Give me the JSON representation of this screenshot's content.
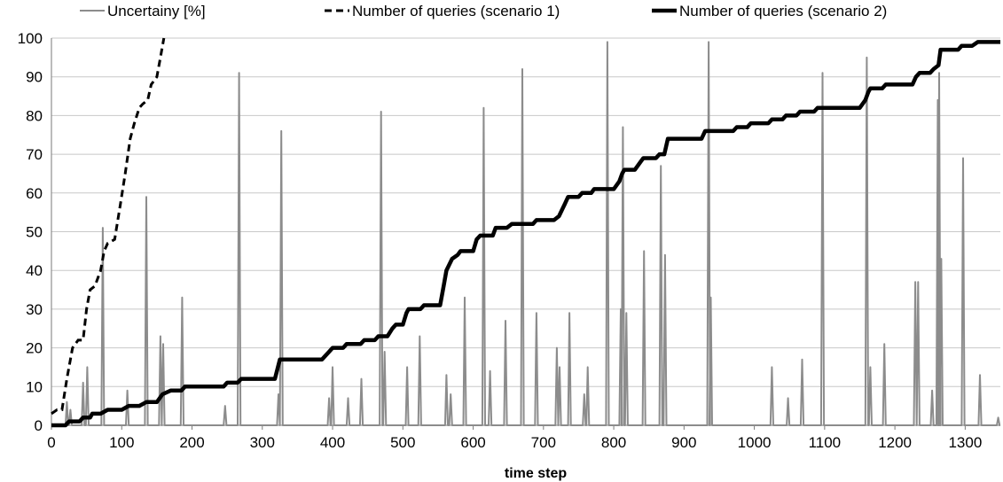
{
  "chart_data": {
    "type": "line",
    "title": "",
    "xlabel": "time step",
    "ylabel": "",
    "xlim": [
      0,
      1350
    ],
    "ylim": [
      0,
      100
    ],
    "x_ticks": [
      "0",
      "100",
      "200",
      "300",
      "400",
      "500",
      "600",
      "700",
      "800",
      "900",
      "1000",
      "1100",
      "1200",
      "1300"
    ],
    "y_ticks": [
      "0",
      "10",
      "20",
      "30",
      "40",
      "50",
      "60",
      "70",
      "80",
      "90",
      "100"
    ],
    "grid": "horizontal",
    "legend_position": "top",
    "series": [
      {
        "name": "Uncertainy [%]",
        "style": "solid-thin",
        "color": "#8c8c8c",
        "spikes": [
          [
            22,
            6
          ],
          [
            27,
            4
          ],
          [
            45,
            11
          ],
          [
            51,
            15
          ],
          [
            73,
            51
          ],
          [
            108,
            9
          ],
          [
            135,
            59
          ],
          [
            155,
            23
          ],
          [
            159,
            21
          ],
          [
            186,
            33
          ],
          [
            247,
            5
          ],
          [
            267,
            91
          ],
          [
            323,
            8
          ],
          [
            327,
            76
          ],
          [
            395,
            7
          ],
          [
            400,
            15
          ],
          [
            422,
            7
          ],
          [
            441,
            12
          ],
          [
            469,
            81
          ],
          [
            474,
            19
          ],
          [
            506,
            15
          ],
          [
            524,
            23
          ],
          [
            562,
            13
          ],
          [
            568,
            8
          ],
          [
            588,
            33
          ],
          [
            615,
            82
          ],
          [
            624,
            14
          ],
          [
            646,
            27
          ],
          [
            670,
            92
          ],
          [
            690,
            29
          ],
          [
            719,
            20
          ],
          [
            723,
            15
          ],
          [
            737,
            29
          ],
          [
            758,
            8
          ],
          [
            763,
            15
          ],
          [
            791,
            99
          ],
          [
            810,
            30
          ],
          [
            813,
            77
          ],
          [
            818,
            29
          ],
          [
            843,
            45
          ],
          [
            867,
            67
          ],
          [
            873,
            44
          ],
          [
            935,
            99
          ],
          [
            938,
            33
          ],
          [
            1025,
            15
          ],
          [
            1048,
            7
          ],
          [
            1068,
            17
          ],
          [
            1097,
            91
          ],
          [
            1160,
            95
          ],
          [
            1165,
            15
          ],
          [
            1185,
            21
          ],
          [
            1229,
            37
          ],
          [
            1233,
            37
          ],
          [
            1253,
            9
          ],
          [
            1261,
            84
          ],
          [
            1263,
            91
          ],
          [
            1266,
            43
          ],
          [
            1297,
            69
          ],
          [
            1321,
            13
          ],
          [
            1347,
            2
          ]
        ]
      },
      {
        "name": "Number of queries (scenario 1)",
        "style": "dashed",
        "color": "#000000",
        "points": [
          [
            0,
            3
          ],
          [
            8,
            4
          ],
          [
            15,
            4
          ],
          [
            22,
            12
          ],
          [
            30,
            20
          ],
          [
            38,
            22
          ],
          [
            45,
            22
          ],
          [
            50,
            30
          ],
          [
            55,
            35
          ],
          [
            62,
            36
          ],
          [
            70,
            40
          ],
          [
            75,
            45
          ],
          [
            80,
            47
          ],
          [
            90,
            48
          ],
          [
            98,
            57
          ],
          [
            105,
            65
          ],
          [
            112,
            74
          ],
          [
            118,
            78
          ],
          [
            125,
            82
          ],
          [
            130,
            83
          ],
          [
            137,
            84
          ],
          [
            142,
            88
          ],
          [
            150,
            90
          ],
          [
            155,
            95
          ],
          [
            160,
            100
          ]
        ]
      },
      {
        "name": "Number of queries (scenario 2)",
        "style": "solid-thick",
        "color": "#000000",
        "points": [
          [
            0,
            0
          ],
          [
            20,
            0
          ],
          [
            25,
            1
          ],
          [
            40,
            1
          ],
          [
            45,
            2
          ],
          [
            55,
            2
          ],
          [
            58,
            3
          ],
          [
            70,
            3
          ],
          [
            80,
            4
          ],
          [
            100,
            4
          ],
          [
            110,
            5
          ],
          [
            125,
            5
          ],
          [
            135,
            6
          ],
          [
            150,
            6
          ],
          [
            158,
            8
          ],
          [
            170,
            9
          ],
          [
            185,
            9
          ],
          [
            190,
            10
          ],
          [
            245,
            10
          ],
          [
            250,
            11
          ],
          [
            265,
            11
          ],
          [
            270,
            12
          ],
          [
            318,
            12
          ],
          [
            325,
            17
          ],
          [
            385,
            17
          ],
          [
            390,
            18
          ],
          [
            395,
            19
          ],
          [
            400,
            20
          ],
          [
            415,
            20
          ],
          [
            420,
            21
          ],
          [
            440,
            21
          ],
          [
            445,
            22
          ],
          [
            460,
            22
          ],
          [
            465,
            23
          ],
          [
            478,
            23
          ],
          [
            485,
            25
          ],
          [
            490,
            26
          ],
          [
            500,
            26
          ],
          [
            505,
            29
          ],
          [
            508,
            30
          ],
          [
            525,
            30
          ],
          [
            530,
            31
          ],
          [
            553,
            31
          ],
          [
            558,
            36
          ],
          [
            562,
            40
          ],
          [
            570,
            43
          ],
          [
            578,
            44
          ],
          [
            582,
            45
          ],
          [
            600,
            45
          ],
          [
            605,
            48
          ],
          [
            610,
            49
          ],
          [
            628,
            49
          ],
          [
            632,
            51
          ],
          [
            648,
            51
          ],
          [
            655,
            52
          ],
          [
            685,
            52
          ],
          [
            690,
            53
          ],
          [
            715,
            53
          ],
          [
            722,
            54
          ],
          [
            730,
            57
          ],
          [
            735,
            59
          ],
          [
            750,
            59
          ],
          [
            755,
            60
          ],
          [
            768,
            60
          ],
          [
            772,
            61
          ],
          [
            800,
            61
          ],
          [
            808,
            63
          ],
          [
            812,
            65
          ],
          [
            815,
            66
          ],
          [
            830,
            66
          ],
          [
            838,
            68
          ],
          [
            842,
            69
          ],
          [
            860,
            69
          ],
          [
            865,
            70
          ],
          [
            872,
            70
          ],
          [
            877,
            74
          ],
          [
            925,
            74
          ],
          [
            930,
            76
          ],
          [
            970,
            76
          ],
          [
            975,
            77
          ],
          [
            990,
            77
          ],
          [
            995,
            78
          ],
          [
            1020,
            78
          ],
          [
            1025,
            79
          ],
          [
            1040,
            79
          ],
          [
            1045,
            80
          ],
          [
            1060,
            80
          ],
          [
            1065,
            81
          ],
          [
            1085,
            81
          ],
          [
            1090,
            82
          ],
          [
            1150,
            82
          ],
          [
            1158,
            84
          ],
          [
            1162,
            86
          ],
          [
            1165,
            87
          ],
          [
            1182,
            87
          ],
          [
            1187,
            88
          ],
          [
            1225,
            88
          ],
          [
            1230,
            90
          ],
          [
            1235,
            91
          ],
          [
            1250,
            91
          ],
          [
            1255,
            92
          ],
          [
            1262,
            93
          ],
          [
            1265,
            97
          ],
          [
            1290,
            97
          ],
          [
            1295,
            98
          ],
          [
            1310,
            98
          ],
          [
            1318,
            99
          ],
          [
            1350,
            99
          ]
        ]
      }
    ]
  }
}
